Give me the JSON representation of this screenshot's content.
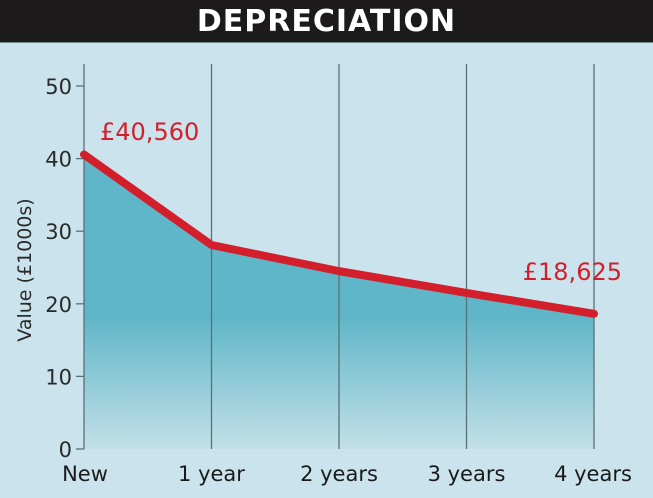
{
  "header": {
    "title": "DEPRECIATION"
  },
  "colors": {
    "background": "#cbe3ec",
    "title_bar": "#1c1a1a",
    "line": "#d21f2b",
    "area_top": "#5fb6c8",
    "area_bottom": "#c3e0e8",
    "grid": "#5a7078"
  },
  "chart_data": {
    "type": "area",
    "title": "DEPRECIATION",
    "xlabel": "",
    "ylabel": "Value (£1000s)",
    "categories": [
      "New",
      "1 year",
      "2 years",
      "3 years",
      "4 years"
    ],
    "values": [
      40.56,
      28.1,
      24.5,
      21.5,
      18.625
    ],
    "ylim": [
      0,
      50
    ],
    "yticks": [
      0,
      10,
      20,
      30,
      40,
      50
    ],
    "grid": {
      "vertical": true,
      "horizontal": false
    },
    "annotations": [
      {
        "label": "£40,560",
        "category": "New"
      },
      {
        "label": "£18,625",
        "category": "4 years"
      }
    ],
    "legend": null
  }
}
